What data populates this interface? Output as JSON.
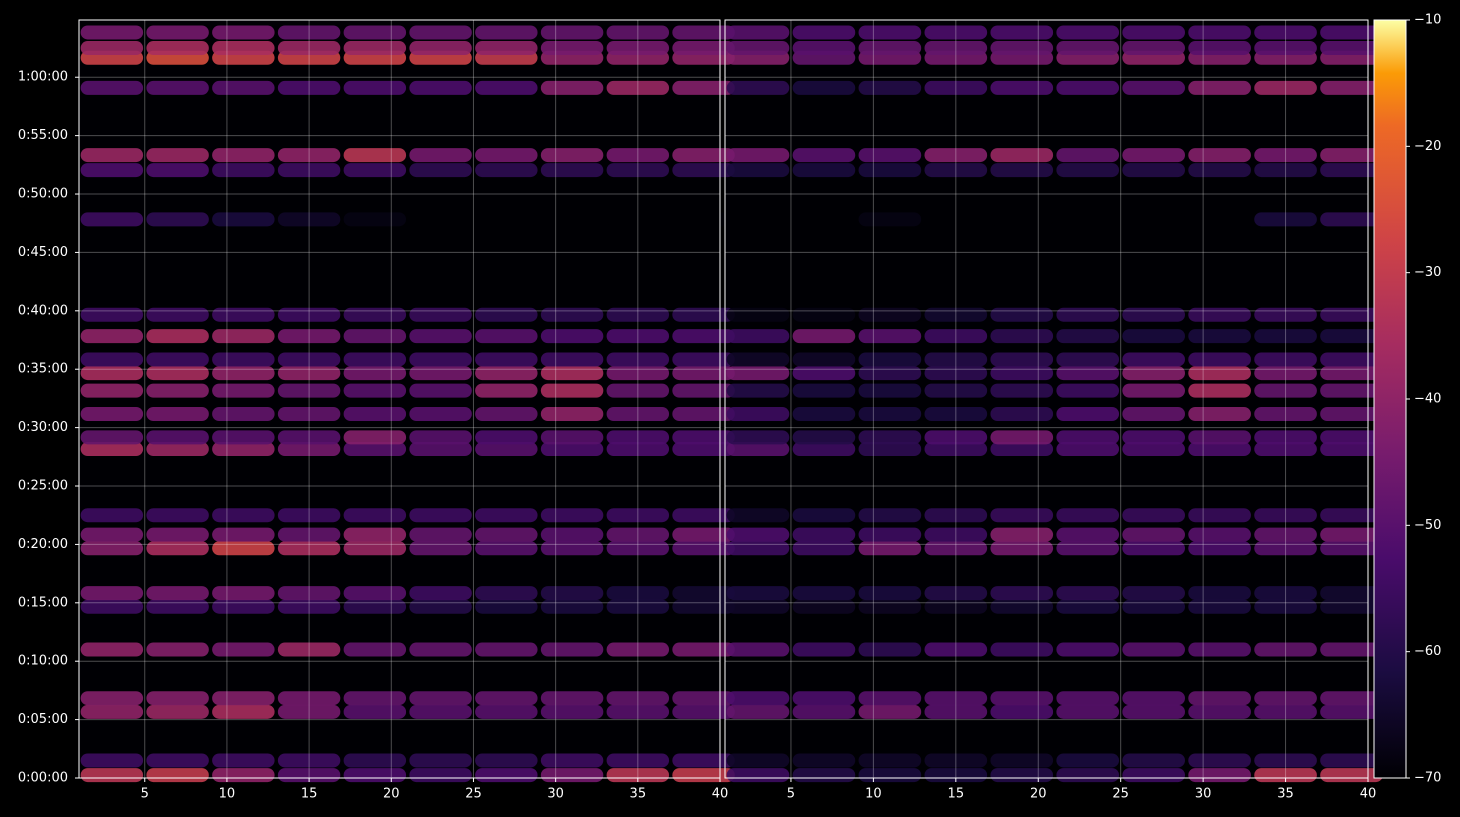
{
  "chart_data": [
    {
      "type": "heatmap",
      "colormap": "inferno",
      "xlim": [
        1,
        40
      ],
      "ylim": [
        0,
        3894
      ],
      "grid": true,
      "xticks": [
        5,
        10,
        15,
        20,
        25,
        30,
        35,
        40
      ],
      "yticks": [
        {
          "value": 0,
          "label": "0:00:00"
        },
        {
          "value": 300,
          "label": "0:05:00"
        },
        {
          "value": 600,
          "label": "0:10:00"
        },
        {
          "value": 900,
          "label": "0:15:00"
        },
        {
          "value": 1200,
          "label": "0:20:00"
        },
        {
          "value": 1500,
          "label": "0:25:00"
        },
        {
          "value": 1800,
          "label": "0:30:00"
        },
        {
          "value": 2100,
          "label": "0:35:00"
        },
        {
          "value": 2400,
          "label": "0:40:00"
        },
        {
          "value": 2700,
          "label": "0:45:00"
        },
        {
          "value": 3000,
          "label": "0:50:00"
        },
        {
          "value": 3300,
          "label": "0:55:00"
        },
        {
          "value": 3600,
          "label": "1:00:00"
        }
      ],
      "colorbar": {
        "clim": [
          -70,
          -10
        ],
        "ticks": [
          {
            "value": -70,
            "label": "−70"
          },
          {
            "value": -60,
            "label": "−60"
          },
          {
            "value": -50,
            "label": "−50"
          },
          {
            "value": -40,
            "label": "−40"
          },
          {
            "value": -30,
            "label": "−30"
          },
          {
            "value": -20,
            "label": "−20"
          },
          {
            "value": -10,
            "label": "−10"
          }
        ]
      },
      "x": [
        3,
        7,
        11,
        15,
        19,
        23,
        27,
        31,
        35,
        39
      ],
      "y": [
        15,
        90,
        340,
        410,
        660,
        880,
        950,
        1180,
        1250,
        1350,
        1690,
        1750,
        1870,
        1990,
        2080,
        2150,
        2270,
        2380,
        2870,
        3123,
        3200,
        3545,
        3700,
        3750,
        3830
      ],
      "values": [
        [
          -32,
          -30,
          -40,
          -50,
          -52,
          -55,
          -52,
          -45,
          -32,
          -30
        ],
        [
          -55,
          -55,
          -55,
          -55,
          -58,
          -58,
          -58,
          -55,
          -55,
          -55
        ],
        [
          -40,
          -38,
          -35,
          -45,
          -50,
          -50,
          -50,
          -50,
          -50,
          -50
        ],
        [
          -42,
          -42,
          -42,
          -45,
          -48,
          -48,
          -48,
          -48,
          -48,
          -48
        ],
        [
          -40,
          -42,
          -45,
          -38,
          -48,
          -48,
          -48,
          -48,
          -45,
          -45
        ],
        [
          -55,
          -55,
          -55,
          -55,
          -58,
          -60,
          -62,
          -62,
          -62,
          -64
        ],
        [
          -45,
          -45,
          -45,
          -48,
          -50,
          -55,
          -58,
          -60,
          -62,
          -64
        ],
        [
          -42,
          -35,
          -28,
          -35,
          -38,
          -48,
          -50,
          -50,
          -50,
          -50
        ],
        [
          -45,
          -45,
          -45,
          -48,
          -40,
          -48,
          -48,
          -50,
          -48,
          -45
        ],
        [
          -55,
          -55,
          -55,
          -55,
          -55,
          -55,
          -55,
          -55,
          -55,
          -55
        ],
        [
          -35,
          -38,
          -40,
          -45,
          -50,
          -50,
          -50,
          -52,
          -52,
          -52
        ],
        [
          -48,
          -50,
          -50,
          -50,
          -42,
          -50,
          -52,
          -50,
          -52,
          -52
        ],
        [
          -45,
          -45,
          -48,
          -48,
          -50,
          -50,
          -48,
          -40,
          -48,
          -48
        ],
        [
          -40,
          -42,
          -45,
          -48,
          -50,
          -50,
          -40,
          -35,
          -48,
          -48
        ],
        [
          -35,
          -35,
          -40,
          -40,
          -45,
          -45,
          -40,
          -35,
          -45,
          -45
        ],
        [
          -55,
          -55,
          -55,
          -55,
          -55,
          -55,
          -55,
          -55,
          -55,
          -55
        ],
        [
          -40,
          -35,
          -38,
          -45,
          -48,
          -50,
          -50,
          -52,
          -52,
          -52
        ],
        [
          -55,
          -55,
          -55,
          -55,
          -56,
          -56,
          -58,
          -58,
          -58,
          -58
        ],
        [
          -55,
          -58,
          -62,
          -65,
          -68,
          -70,
          -70,
          -70,
          -70,
          -70
        ],
        [
          -52,
          -52,
          -55,
          -55,
          -55,
          -58,
          -58,
          -58,
          -58,
          -58
        ],
        [
          -38,
          -38,
          -40,
          -40,
          -32,
          -45,
          -45,
          -42,
          -45,
          -42
        ],
        [
          -50,
          -50,
          -50,
          -52,
          -52,
          -52,
          -52,
          -42,
          -38,
          -42
        ],
        [
          -28,
          -25,
          -28,
          -28,
          -28,
          -28,
          -30,
          -40,
          -40,
          -40
        ],
        [
          -38,
          -35,
          -35,
          -38,
          -38,
          -40,
          -40,
          -45,
          -45,
          -45
        ],
        [
          -45,
          -45,
          -45,
          -48,
          -48,
          -48,
          -48,
          -48,
          -48,
          -48
        ]
      ]
    },
    {
      "type": "heatmap",
      "colormap": "inferno",
      "xlim": [
        1,
        40
      ],
      "ylim": [
        0,
        3894
      ],
      "grid": true,
      "xticks": [
        5,
        10,
        15,
        20,
        25,
        30,
        35,
        40
      ],
      "x": [
        3,
        7,
        11,
        15,
        19,
        23,
        27,
        31,
        35,
        39
      ],
      "y": [
        15,
        90,
        340,
        410,
        660,
        880,
        950,
        1180,
        1250,
        1350,
        1690,
        1750,
        1870,
        1990,
        2080,
        2150,
        2270,
        2380,
        2870,
        3123,
        3200,
        3545,
        3700,
        3750,
        3830
      ],
      "values": [
        [
          -55,
          -60,
          -62,
          -62,
          -60,
          -58,
          -55,
          -45,
          -32,
          -32
        ],
        [
          -65,
          -65,
          -65,
          -65,
          -65,
          -62,
          -60,
          -58,
          -58,
          -58
        ],
        [
          -48,
          -50,
          -45,
          -50,
          -52,
          -50,
          -50,
          -50,
          -50,
          -50
        ],
        [
          -52,
          -52,
          -50,
          -50,
          -50,
          -50,
          -50,
          -48,
          -48,
          -48
        ],
        [
          -50,
          -55,
          -58,
          -52,
          -55,
          -52,
          -50,
          -50,
          -48,
          -48
        ],
        [
          -65,
          -66,
          -66,
          -66,
          -64,
          -62,
          -62,
          -62,
          -62,
          -64
        ],
        [
          -62,
          -62,
          -62,
          -60,
          -58,
          -58,
          -60,
          -62,
          -62,
          -64
        ],
        [
          -55,
          -55,
          -45,
          -48,
          -45,
          -50,
          -52,
          -52,
          -50,
          -50
        ],
        [
          -52,
          -55,
          -55,
          -55,
          -42,
          -50,
          -48,
          -50,
          -48,
          -45
        ],
        [
          -65,
          -62,
          -60,
          -58,
          -56,
          -56,
          -56,
          -56,
          -56,
          -56
        ],
        [
          -50,
          -55,
          -58,
          -55,
          -55,
          -52,
          -52,
          -52,
          -52,
          -52
        ],
        [
          -58,
          -60,
          -58,
          -52,
          -45,
          -52,
          -52,
          -50,
          -52,
          -52
        ],
        [
          -55,
          -62,
          -62,
          -62,
          -58,
          -52,
          -48,
          -42,
          -48,
          -48
        ],
        [
          -60,
          -62,
          -62,
          -60,
          -58,
          -55,
          -45,
          -35,
          -48,
          -48
        ],
        [
          -45,
          -52,
          -58,
          -58,
          -55,
          -50,
          -42,
          -35,
          -45,
          -45
        ],
        [
          -65,
          -65,
          -62,
          -60,
          -58,
          -58,
          -55,
          -55,
          -55,
          -55
        ],
        [
          -55,
          -45,
          -50,
          -55,
          -58,
          -60,
          -62,
          -62,
          -62,
          -62
        ],
        [
          -68,
          -68,
          -66,
          -64,
          -60,
          -58,
          -58,
          -56,
          -56,
          -56
        ],
        [
          -70,
          -70,
          -68,
          -70,
          -70,
          -70,
          -70,
          -70,
          -62,
          -58
        ],
        [
          -62,
          -62,
          -62,
          -60,
          -60,
          -60,
          -60,
          -60,
          -60,
          -58
        ],
        [
          -45,
          -50,
          -50,
          -42,
          -38,
          -48,
          -45,
          -42,
          -45,
          -42
        ],
        [
          -58,
          -62,
          -60,
          -55,
          -52,
          -52,
          -50,
          -42,
          -38,
          -42
        ],
        [
          -42,
          -48,
          -45,
          -45,
          -45,
          -42,
          -40,
          -42,
          -42,
          -42
        ],
        [
          -48,
          -50,
          -48,
          -48,
          -48,
          -48,
          -48,
          -50,
          -50,
          -50
        ],
        [
          -50,
          -52,
          -52,
          -52,
          -52,
          -52,
          -52,
          -52,
          -52,
          -52
        ]
      ]
    }
  ]
}
